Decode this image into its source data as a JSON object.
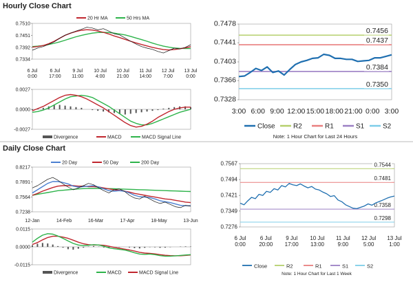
{
  "sections": {
    "hourly_title": "Hourly Close Chart",
    "daily_title": "Daily Close Chart"
  },
  "colors": {
    "close": "#1f6fb0",
    "ma_red": "#c0262e",
    "ma_green": "#2db34a",
    "ma_blue": "#4a7fd0",
    "R2": "#b5cf6b",
    "R1": "#e87e7e",
    "S1": "#9b7fc4",
    "S2": "#7ccde8",
    "divergence": "#555555"
  },
  "chart_data": [
    {
      "id": "hourly_price_ma",
      "type": "line",
      "legend": [
        "20 Hr MA",
        "50 Hrs MA"
      ],
      "y_ticks": [
        "0.7510",
        "0.7451",
        "0.7392",
        "0.7334"
      ],
      "x_ticks": [
        "6 Jul\n0:00",
        "6 Jul\n17:00",
        "9 Jul\n11:00",
        "10 Jul\n4:00",
        "10 Jul\n21:00",
        "11 Jul\n14:00",
        "12 Jul\n7:00",
        "13 Jul\n0:00"
      ],
      "ylim": [
        0.7334,
        0.751
      ],
      "series": [
        {
          "name": "",
          "kind": "price",
          "values": [
            0.7378,
            0.7389,
            0.7396,
            0.7407,
            0.7419,
            0.7437,
            0.7452,
            0.7462,
            0.7472,
            0.7481,
            0.7491,
            0.7487,
            0.7478,
            0.7484,
            0.7472,
            0.7459,
            0.7453,
            0.7438,
            0.7422,
            0.7408,
            0.7396,
            0.7388,
            0.7382,
            0.7372,
            0.7364,
            0.7376,
            0.7388,
            0.7384,
            0.7392,
            0.7405
          ]
        },
        {
          "name": "20 Hr MA",
          "values": [
            0.7393,
            0.7396,
            0.7401,
            0.741,
            0.7422,
            0.7437,
            0.7451,
            0.7462,
            0.747,
            0.7476,
            0.7479,
            0.7477,
            0.7472,
            0.7466,
            0.7458,
            0.7448,
            0.744,
            0.7431,
            0.7422,
            0.7414,
            0.7406,
            0.7399,
            0.7392,
            0.7386,
            0.7381,
            0.7379,
            0.7381,
            0.7385,
            0.739,
            0.7395
          ]
        },
        {
          "name": "50 Hrs MA",
          "values": [
            0.7396,
            0.7398,
            0.7401,
            0.7406,
            0.7412,
            0.7419,
            0.7427,
            0.7436,
            0.7444,
            0.7451,
            0.7457,
            0.7462,
            0.7465,
            0.7466,
            0.7465,
            0.7462,
            0.7458,
            0.7453,
            0.7446,
            0.7438,
            0.743,
            0.7422,
            0.7413,
            0.7405,
            0.7398,
            0.7393,
            0.7389,
            0.7387,
            0.7386,
            0.7386
          ]
        }
      ]
    },
    {
      "id": "hourly_macd",
      "type": "line",
      "y_ticks": [
        "0.0027",
        "0.0000",
        "-0.0027"
      ],
      "ylim": [
        -0.0027,
        0.0027
      ],
      "legend": [
        "Divergence",
        "MACD",
        "MACD Signal Line"
      ],
      "series": [
        {
          "name": "Divergence",
          "kind": "bar",
          "values": [
            -0.0001,
            0.0001,
            0.0002,
            0.0004,
            0.0006,
            0.0006,
            0.0005,
            0.0004,
            0.0003,
            0.0002,
            0.0,
            -0.0001,
            -0.0002,
            -0.0003,
            -0.0004,
            -0.0005,
            -0.0006,
            -0.0007,
            -0.0006,
            -0.0005,
            -0.0004,
            -0.0003,
            -0.0002,
            -0.0001,
            0.0001,
            0.0002,
            0.0003,
            0.0004,
            0.0004,
            0.0003
          ]
        },
        {
          "name": "MACD",
          "values": [
            -0.0002,
            0.0001,
            0.0004,
            0.0008,
            0.0012,
            0.0016,
            0.0019,
            0.002,
            0.0019,
            0.0017,
            0.0014,
            0.001,
            0.0006,
            0.0002,
            -0.0003,
            -0.0008,
            -0.0013,
            -0.0018,
            -0.0022,
            -0.0024,
            -0.0023,
            -0.002,
            -0.0016,
            -0.0011,
            -0.0007,
            -0.0003,
            0.0,
            0.0002,
            0.0003,
            0.0003
          ]
        },
        {
          "name": "MACD Signal Line",
          "values": [
            -0.0004,
            -0.0003,
            -0.0001,
            0.0002,
            0.0006,
            0.001,
            0.0014,
            0.0017,
            0.0018,
            0.0019,
            0.0018,
            0.0016,
            0.0012,
            0.0008,
            0.0004,
            -0.0001,
            -0.0006,
            -0.0011,
            -0.0016,
            -0.0019,
            -0.0021,
            -0.0021,
            -0.0019,
            -0.0016,
            -0.0013,
            -0.001,
            -0.0007,
            -0.0004,
            -0.0002,
            0.0
          ]
        }
      ]
    },
    {
      "id": "hourly_close_levels",
      "type": "line",
      "y_ticks": [
        "0.7478",
        "0.7441",
        "0.7403",
        "0.7366",
        "0.7328"
      ],
      "x_ticks": [
        "3:00",
        "6:00",
        "9:00",
        "12:00",
        "15:00",
        "18:00",
        "21:00",
        "0:00",
        "3:00"
      ],
      "ylim": [
        0.7328,
        0.7478
      ],
      "legend": [
        "Close",
        "R2",
        "R1",
        "S1",
        "S2"
      ],
      "levels": [
        {
          "name": "R2",
          "value": 0.7456,
          "label": "0.7456"
        },
        {
          "name": "R1",
          "value": 0.7437,
          "label": "0.7437"
        },
        {
          "name": "S1",
          "value": 0.7384,
          "label": "0.7384"
        },
        {
          "name": "S2",
          "value": 0.735,
          "label": "0.7350"
        }
      ],
      "series": [
        {
          "name": "Close",
          "values": [
            0.7374,
            0.7375,
            0.7382,
            0.739,
            0.7386,
            0.7393,
            0.7382,
            0.7385,
            0.7377,
            0.7388,
            0.7398,
            0.7403,
            0.7406,
            0.741,
            0.7411,
            0.7418,
            0.7416,
            0.741,
            0.741,
            0.7408,
            0.7408,
            0.7404,
            0.7405,
            0.7406,
            0.7411,
            0.7411,
            0.7414,
            0.7417
          ]
        }
      ],
      "note": "Note: 1 Hour Chart for Last 24 Hours"
    },
    {
      "id": "daily_price_ma",
      "type": "line",
      "legend": [
        "20 Day",
        "50 Day",
        "200 Day"
      ],
      "y_ticks": [
        "0.8217",
        "0.7891",
        "0.7564",
        "0.7238"
      ],
      "x_ticks": [
        "12-Jan",
        "14-Feb",
        "16-Mar",
        "17-Apr",
        "18-May",
        "13-Jun"
      ],
      "ylim": [
        0.7238,
        0.8217
      ],
      "series": [
        {
          "name": "",
          "kind": "price",
          "values": [
            0.776,
            0.781,
            0.788,
            0.795,
            0.799,
            0.793,
            0.785,
            0.778,
            0.772,
            0.776,
            0.781,
            0.786,
            0.783,
            0.776,
            0.77,
            0.765,
            0.772,
            0.774,
            0.769,
            0.76,
            0.754,
            0.752,
            0.758,
            0.752,
            0.746,
            0.742,
            0.745,
            0.74,
            0.735,
            0.733,
            0.738,
            0.736
          ]
        },
        {
          "name": "20 Day",
          "values": [
            0.765,
            0.772,
            0.779,
            0.786,
            0.79,
            0.79,
            0.788,
            0.785,
            0.78,
            0.778,
            0.779,
            0.78,
            0.781,
            0.778,
            0.774,
            0.77,
            0.769,
            0.77,
            0.769,
            0.765,
            0.76,
            0.757,
            0.756,
            0.755,
            0.752,
            0.748,
            0.746,
            0.744,
            0.741,
            0.738,
            0.737,
            0.737
          ]
        },
        {
          "name": "50 Day",
          "values": [
            0.76,
            0.764,
            0.769,
            0.773,
            0.777,
            0.78,
            0.781,
            0.781,
            0.781,
            0.78,
            0.78,
            0.779,
            0.779,
            0.778,
            0.776,
            0.774,
            0.772,
            0.771,
            0.769,
            0.767,
            0.764,
            0.762,
            0.76,
            0.758,
            0.756,
            0.754,
            0.752,
            0.751,
            0.749,
            0.747,
            0.745,
            0.744
          ]
        },
        {
          "name": "200 Day",
          "values": [
            0.76,
            0.762,
            0.764,
            0.766,
            0.768,
            0.77,
            0.771,
            0.772,
            0.773,
            0.774,
            0.7745,
            0.775,
            0.775,
            0.775,
            0.7748,
            0.7745,
            0.7742,
            0.7738,
            0.7734,
            0.773,
            0.7726,
            0.7722,
            0.7718,
            0.7714,
            0.771,
            0.7706,
            0.7702,
            0.7698,
            0.7694,
            0.769,
            0.7686,
            0.7682
          ]
        }
      ]
    },
    {
      "id": "daily_macd",
      "type": "line",
      "y_ticks": [
        "0.0115",
        "0.0000",
        "-0.0115"
      ],
      "ylim": [
        -0.0115,
        0.0115
      ],
      "legend": [
        "Divergence",
        "MACD",
        "MACD Signal Line"
      ],
      "series": [
        {
          "name": "Divergence",
          "kind": "bar",
          "values": [
            0.001,
            0.002,
            0.0025,
            0.0022,
            0.0015,
            0.0005,
            -0.0005,
            -0.0015,
            -0.0018,
            -0.0012,
            -0.0005,
            0.0002,
            0.0005,
            0.0002,
            -0.0004,
            -0.0008,
            -0.0006,
            -0.0002,
            0.0,
            -0.0004,
            -0.0008,
            -0.001,
            -0.0006,
            -0.0002,
            -0.0003,
            -0.0006,
            -0.0005,
            -0.0002,
            0.0,
            0.0002,
            0.0003,
            0.0002
          ]
        },
        {
          "name": "MACD",
          "values": [
            0.003,
            0.0055,
            0.0075,
            0.0085,
            0.0082,
            0.007,
            0.0055,
            0.0038,
            0.0022,
            0.0012,
            0.0008,
            0.001,
            0.0014,
            0.0012,
            0.0004,
            -0.0006,
            -0.0012,
            -0.0016,
            -0.002,
            -0.0028,
            -0.0038,
            -0.0046,
            -0.0048,
            -0.0046,
            -0.005,
            -0.0056,
            -0.006,
            -0.006,
            -0.0058,
            -0.0055,
            -0.0052,
            -0.005
          ]
        },
        {
          "name": "MACD Signal Line",
          "values": [
            0.0015,
            0.0028,
            0.0045,
            0.006,
            0.0068,
            0.0068,
            0.0063,
            0.0055,
            0.0043,
            0.003,
            0.002,
            0.0014,
            0.0012,
            0.0012,
            0.001,
            0.0004,
            -0.0003,
            -0.0009,
            -0.0014,
            -0.002,
            -0.0027,
            -0.0035,
            -0.004,
            -0.0042,
            -0.0045,
            -0.005,
            -0.0054,
            -0.0056,
            -0.0057,
            -0.0057,
            -0.0055,
            -0.0052
          ]
        }
      ]
    },
    {
      "id": "weekly_close_levels",
      "type": "line",
      "y_ticks": [
        "0.7567",
        "0.7494",
        "0.7421",
        "0.7349",
        "0.7276"
      ],
      "x_ticks": [
        "6 Jul\n0:00",
        "6 Jul\n20:00",
        "9 Jul\n17:00",
        "10 Jul\n13:00",
        "11 Jul\n9:00",
        "12 Jul\n5:00",
        "13 Jul\n1:00"
      ],
      "ylim": [
        0.7276,
        0.7567
      ],
      "legend": [
        "Close",
        "R2",
        "R1",
        "S1",
        "S2"
      ],
      "levels": [
        {
          "name": "R2",
          "value": 0.7544,
          "label": "0.7544"
        },
        {
          "name": "R1",
          "value": 0.7481,
          "label": "0.7481"
        },
        {
          "name": "S1",
          "value": 0.7358,
          "label": "0.7358"
        },
        {
          "name": "S2",
          "value": 0.7298,
          "label": "0.7298"
        }
      ],
      "series": [
        {
          "name": "Close",
          "values": [
            0.7385,
            0.7378,
            0.7396,
            0.7412,
            0.7406,
            0.7426,
            0.7421,
            0.744,
            0.7435,
            0.7452,
            0.7446,
            0.7466,
            0.746,
            0.7476,
            0.747,
            0.7466,
            0.7474,
            0.7464,
            0.7456,
            0.7462,
            0.745,
            0.7446,
            0.7436,
            0.7428,
            0.7416,
            0.742,
            0.74,
            0.7392,
            0.7378,
            0.737,
            0.7362,
            0.736,
            0.7366,
            0.7372,
            0.7382,
            0.7376,
            0.7386,
            0.7393,
            0.74,
            0.7408,
            0.7414,
            0.7418
          ]
        }
      ],
      "note": "Note: 1 Hour Chart for Last 1 Week"
    }
  ]
}
